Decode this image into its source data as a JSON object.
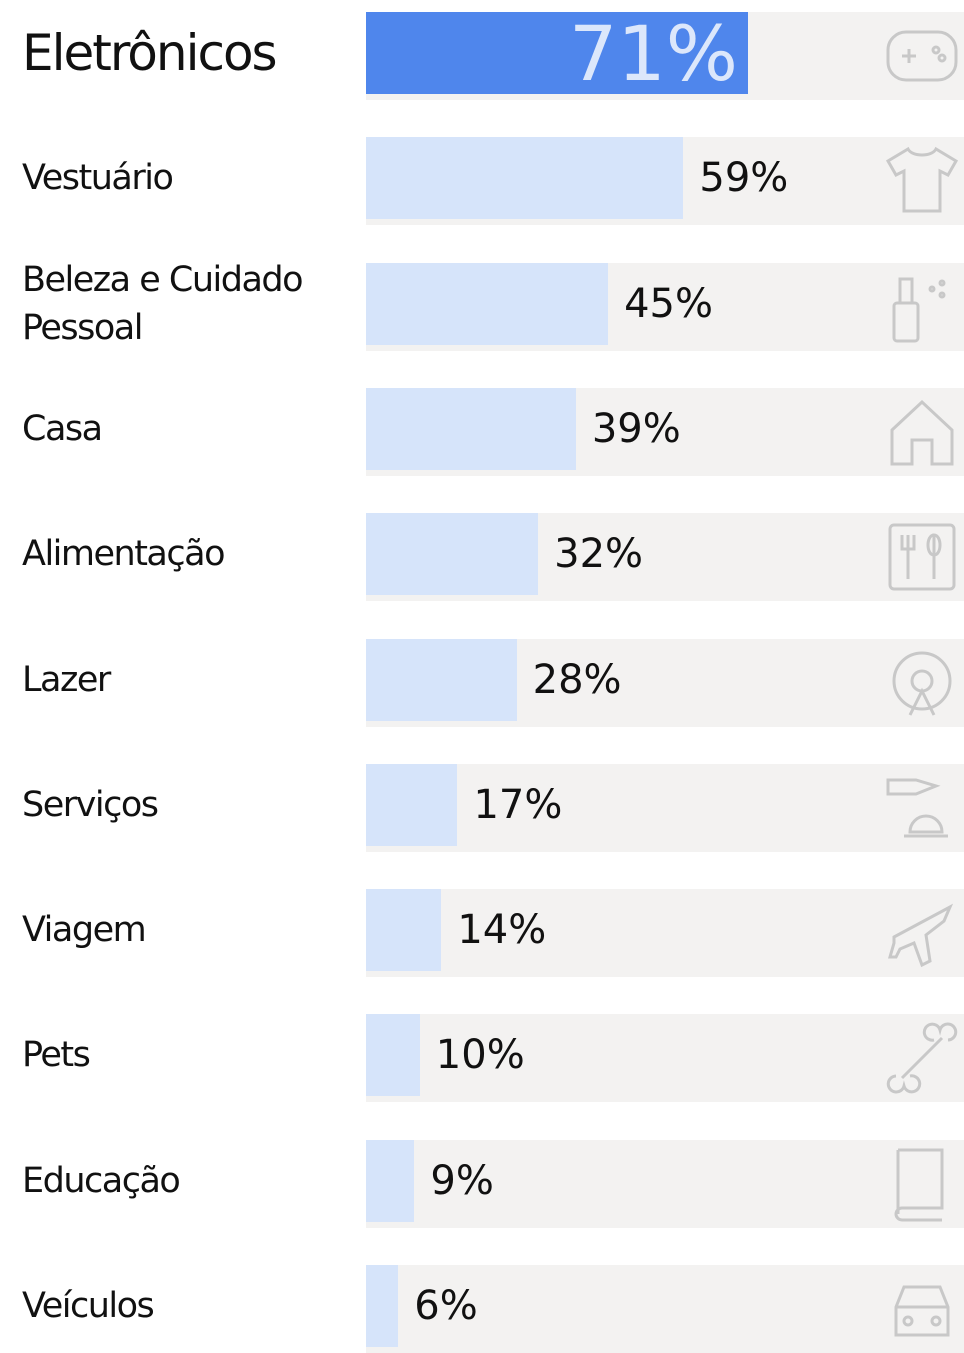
{
  "chart_data": {
    "type": "bar",
    "categories": [
      "Eletrônicos",
      "Vestuário",
      "Beleza e Cuidado Pessoal",
      "Casa",
      "Alimentação",
      "Lazer",
      "Serviços",
      "Viagem",
      "Pets",
      "Educação",
      "Veículos"
    ],
    "values": [
      71,
      59,
      45,
      39,
      32,
      28,
      17,
      14,
      10,
      9,
      6
    ],
    "value_labels": [
      "71%",
      "59%",
      "45%",
      "39%",
      "32%",
      "28%",
      "17%",
      "14%",
      "10%",
      "9%",
      "6%"
    ],
    "color": "#d6e4fa",
    "highlight_color": "#4f86ec",
    "track_color": "#f3f2f1"
  }
}
